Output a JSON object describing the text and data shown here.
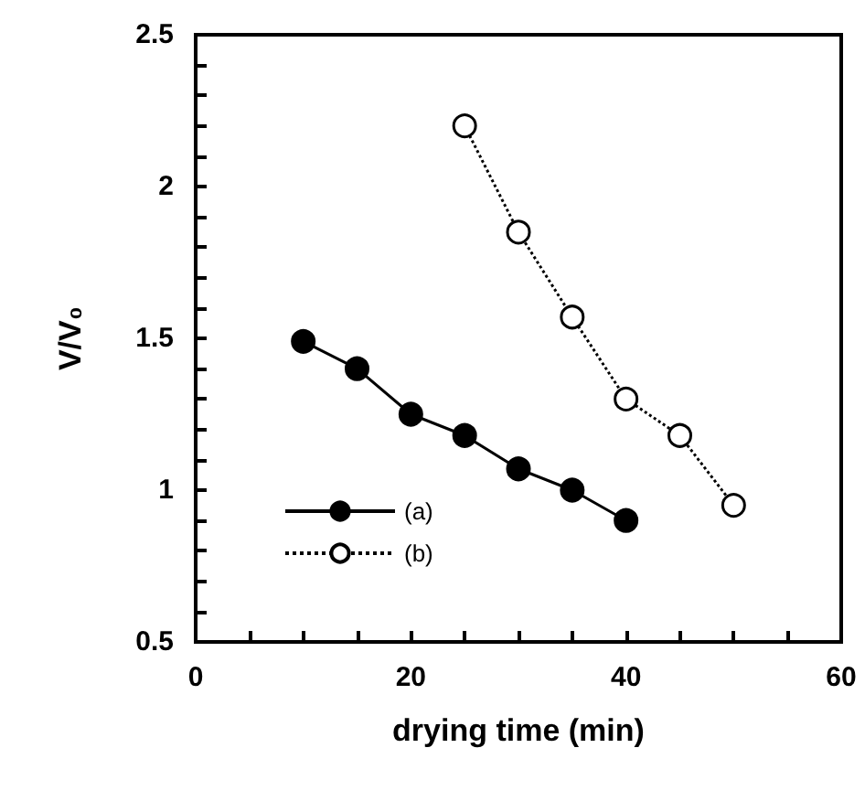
{
  "chart_data": {
    "type": "line",
    "xlabel": "drying time (min)",
    "ylabel": "V/V₀",
    "xlim": [
      0,
      60
    ],
    "ylim": [
      0.5,
      2.5
    ],
    "xticks": [
      0,
      {
        "value": 5,
        "label": null
      },
      {
        "value": 10,
        "label": null
      },
      {
        "value": 15,
        "label": null
      },
      20,
      {
        "value": 25,
        "label": null
      },
      {
        "value": 30,
        "label": null
      },
      {
        "value": 35,
        "label": null
      },
      40,
      {
        "value": 45,
        "label": null
      },
      {
        "value": 50,
        "label": null
      },
      {
        "value": 55,
        "label": null
      },
      60
    ],
    "yticks": [
      0.5,
      {
        "value": 0.6,
        "label": null
      },
      {
        "value": 0.7,
        "label": null
      },
      {
        "value": 0.8,
        "label": null
      },
      {
        "value": 0.9,
        "label": null
      },
      1,
      {
        "value": 1.1,
        "label": null
      },
      {
        "value": 1.2,
        "label": null
      },
      {
        "value": 1.3,
        "label": null
      },
      {
        "value": 1.4,
        "label": null
      },
      1.5,
      {
        "value": 1.6,
        "label": null
      },
      {
        "value": 1.7,
        "label": null
      },
      {
        "value": 1.8,
        "label": null
      },
      {
        "value": 1.9,
        "label": null
      },
      2,
      {
        "value": 2.1,
        "label": null
      },
      {
        "value": 2.2,
        "label": null
      },
      {
        "value": 2.3,
        "label": null
      },
      {
        "value": 2.4,
        "label": null
      },
      2.5
    ],
    "grid": false,
    "legend": "bottom left",
    "marker": "circle",
    "series": [
      {
        "name": "(a)",
        "color": "#000000",
        "line_style": "solid",
        "x": [
          10,
          15,
          20,
          25,
          30,
          35,
          40
        ],
        "values": [
          1.49,
          1.4,
          1.25,
          1.18,
          1.07,
          1.0,
          0.9
        ]
      },
      {
        "name": "(b)",
        "color": "#000000",
        "line_style": "dotted",
        "x": [
          25,
          30,
          35,
          40,
          45,
          50
        ],
        "values": [
          2.2,
          1.85,
          1.57,
          1.3,
          1.18,
          0.95
        ]
      }
    ]
  }
}
